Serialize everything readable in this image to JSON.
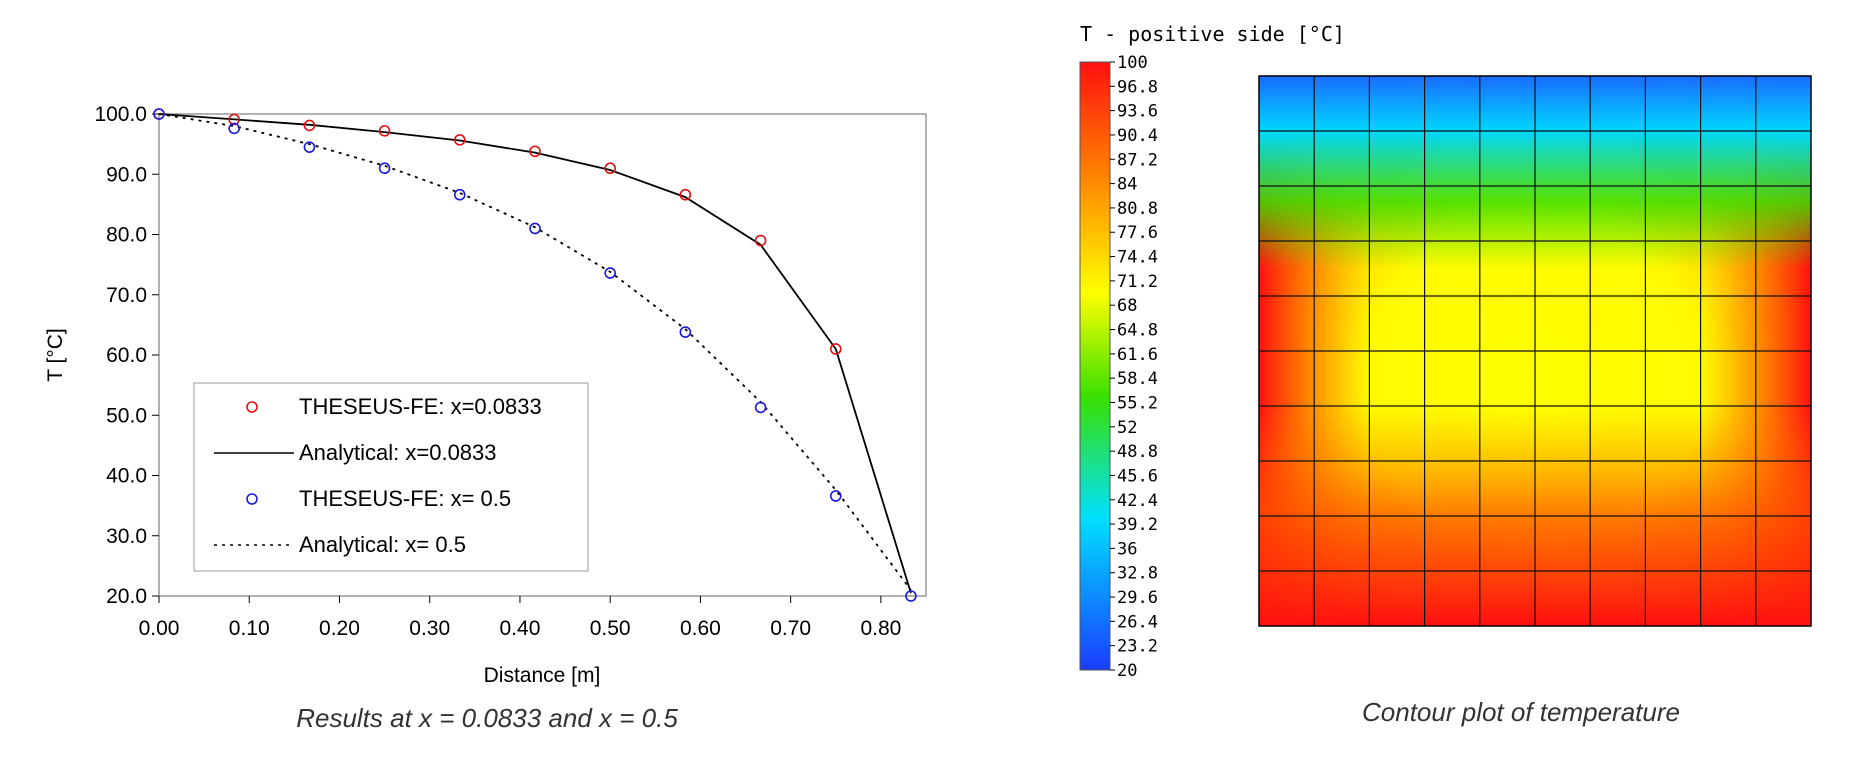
{
  "chart_data": [
    {
      "type": "line",
      "caption": "Results at x = 0.0833 and x = 0.5",
      "xlabel": "Distance [m]",
      "ylabel": "T [°C]",
      "xlim": [
        0,
        0.85
      ],
      "ylim": [
        20,
        100
      ],
      "xticks": [
        "0.00",
        "0.10",
        "0.20",
        "0.30",
        "0.40",
        "0.50",
        "0.60",
        "0.70",
        "0.80"
      ],
      "yticks": [
        "20.0",
        "30.0",
        "40.0",
        "50.0",
        "60.0",
        "70.0",
        "80.0",
        "90.0",
        "100.0"
      ],
      "legend_position": "bottom-left",
      "series": [
        {
          "name": "THESEUS-FE: x=0.0833",
          "style": "markers",
          "color": "#e01010",
          "x": [
            0,
            0.0833,
            0.1667,
            0.25,
            0.3333,
            0.4167,
            0.5,
            0.5833,
            0.6667,
            0.75
          ],
          "y": [
            100,
            99.1,
            98.1,
            97.2,
            95.7,
            93.8,
            91.0,
            86.6,
            79.0,
            61.0
          ]
        },
        {
          "name": "Analytical: x=0.0833",
          "style": "solid",
          "color": "#000000",
          "x": [
            0,
            0.0833,
            0.1667,
            0.25,
            0.3333,
            0.4167,
            0.5,
            0.5833,
            0.6667,
            0.75,
            0.8333
          ],
          "y": [
            100,
            99.1,
            98.2,
            97.0,
            95.6,
            93.6,
            90.7,
            86.2,
            78.3,
            61.0,
            20.5
          ]
        },
        {
          "name": "THESEUS-FE: x= 0.5",
          "style": "markers",
          "color": "#1a1ae0",
          "x": [
            0,
            0.0833,
            0.1667,
            0.25,
            0.3333,
            0.4167,
            0.5,
            0.5833,
            0.6667,
            0.75,
            0.8333
          ],
          "y": [
            100,
            97.6,
            94.5,
            91.0,
            86.6,
            81.0,
            73.6,
            63.8,
            51.3,
            36.6,
            20.0
          ]
        },
        {
          "name": "Analytical: x= 0.5",
          "style": "dotted",
          "color": "#000000",
          "x": [
            0,
            0.0833,
            0.1667,
            0.25,
            0.3333,
            0.4167,
            0.5,
            0.5833,
            0.6667,
            0.75,
            0.8333
          ],
          "y": [
            100,
            98.0,
            95.0,
            91.4,
            86.9,
            81.2,
            73.8,
            64.3,
            52.2,
            37.6,
            21.0
          ]
        }
      ]
    },
    {
      "type": "heatmap",
      "caption": "Contour plot of temperature",
      "colorbar_title": "T - positive side [°C]",
      "colorbar_range": [
        20,
        100
      ],
      "colorbar_labels": [
        "100",
        "96.8",
        "93.6",
        "90.4",
        "87.2",
        "84",
        "80.8",
        "77.6",
        "74.4",
        "71.2",
        "68",
        "64.8",
        "61.6",
        "58.4",
        "55.2",
        "52",
        "48.8",
        "45.6",
        "42.4",
        "39.2",
        "36",
        "32.8",
        "29.6",
        "26.4",
        "23.2",
        "20"
      ],
      "grid": [
        10,
        10
      ],
      "colors": {
        "min": "#1a3cff",
        "low": "#00d8ff",
        "mid": "#3ae000",
        "high_mid": "#ffff00",
        "max": "#ff1010"
      }
    }
  ]
}
